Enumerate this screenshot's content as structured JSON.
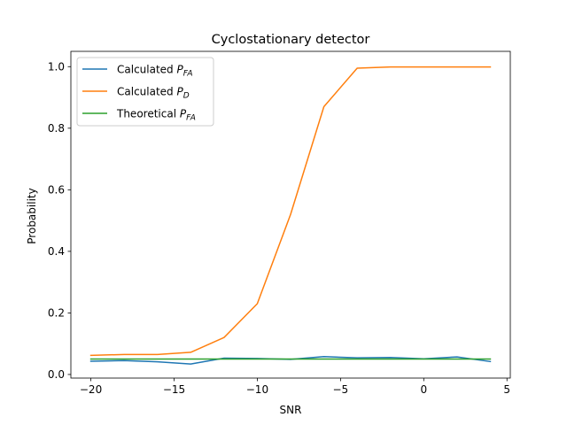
{
  "chart_data": {
    "type": "line",
    "title": "Cyclostationary detector",
    "xlabel": "SNR",
    "ylabel": "Probability",
    "xlim": [
      -21.2,
      5.2
    ],
    "ylim": [
      -0.0117,
      1.0497
    ],
    "xticks": [
      -20,
      -15,
      -10,
      -5,
      0,
      5
    ],
    "yticks": [
      0.0,
      0.2,
      0.4,
      0.6,
      0.8,
      1.0
    ],
    "xtick_labels": [
      "−20",
      "−15",
      "−10",
      "−5",
      "0",
      "5"
    ],
    "ytick_labels": [
      "0.0",
      "0.2",
      "0.4",
      "0.6",
      "0.8",
      "1.0"
    ],
    "grid": false,
    "legend_position": "upper-left",
    "x": [
      -20,
      -18,
      -16,
      -14,
      -12,
      -10,
      -8,
      -6,
      -4,
      -2,
      0,
      2,
      4
    ],
    "series": [
      {
        "name": "Calculated P_FA",
        "label_main": "Calculated ",
        "label_var": "P",
        "label_sub": "FA",
        "color": "#1f77b4",
        "values": [
          0.043,
          0.045,
          0.041,
          0.034,
          0.053,
          0.052,
          0.049,
          0.058,
          0.054,
          0.055,
          0.051,
          0.057,
          0.042
        ]
      },
      {
        "name": "Calculated P_D",
        "label_main": "Calculated ",
        "label_var": "P",
        "label_sub": "D",
        "color": "#ff7f0e",
        "values": [
          0.062,
          0.065,
          0.065,
          0.072,
          0.12,
          0.23,
          0.52,
          0.87,
          0.995,
          0.999,
          0.999,
          0.999,
          0.999
        ]
      },
      {
        "name": "Theoretical P_FA",
        "label_main": "Theoretical ",
        "label_var": "P",
        "label_sub": "FA",
        "color": "#2ca02c",
        "values": [
          0.05,
          0.05,
          0.05,
          0.05,
          0.05,
          0.05,
          0.05,
          0.05,
          0.05,
          0.05,
          0.05,
          0.05,
          0.05
        ]
      }
    ]
  }
}
